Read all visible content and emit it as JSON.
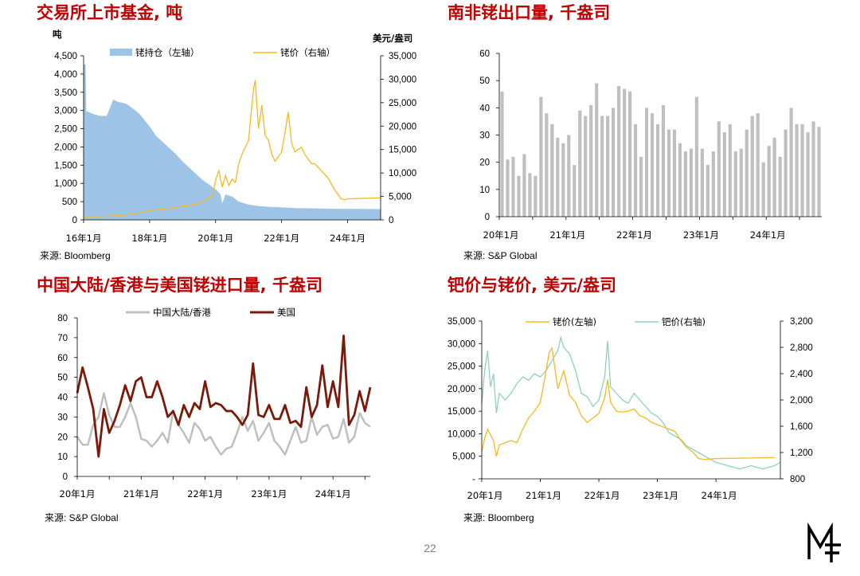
{
  "page_number": "22",
  "logo_letters": "MF",
  "colors": {
    "title_red": "#c00000",
    "holdings_fill": "#9dc3e6",
    "palladium_orange": "#f5b921",
    "export_bar": "#bfbfbf",
    "china_gray": "#bfbfbf",
    "us_brown": "#7b1a0a",
    "platinum_teal": "#8fd1c1"
  },
  "chart_data": [
    {
      "type": "area",
      "title": "交易所上市基金, 吨",
      "source": "来源: Bloomberg",
      "left_unit": "吨",
      "right_unit": "美元/盎司",
      "y_left_range": [
        0,
        4500
      ],
      "y_left_ticks": [
        "0",
        "500",
        "1,000",
        "1,500",
        "2,000",
        "2,500",
        "3,000",
        "3,500",
        "4,000",
        "4,500"
      ],
      "y_right_range": [
        0,
        35000
      ],
      "y_right_ticks": [
        "0",
        "5,000",
        "10,000",
        "15,000",
        "20,000",
        "25,000",
        "30,000",
        "35,000"
      ],
      "x_range": [
        2016.0,
        2025.0
      ],
      "x_ticks": [
        {
          "x": 2016.0,
          "label": "16年1月"
        },
        {
          "x": 2018.0,
          "label": "18年1月"
        },
        {
          "x": 2020.0,
          "label": "20年1月"
        },
        {
          "x": 2022.0,
          "label": "22年1月"
        },
        {
          "x": 2024.0,
          "label": "24年1月"
        }
      ],
      "series": [
        {
          "name": "铑持仓（左轴）",
          "axis": "left",
          "style": "area",
          "x": [
            2016.0,
            2016.06,
            2016.08,
            2016.1,
            2016.3,
            2016.5,
            2016.7,
            2016.9,
            2017.0,
            2017.3,
            2017.5,
            2017.7,
            2018.0,
            2018.2,
            2018.5,
            2018.8,
            2019.0,
            2019.3,
            2019.6,
            2019.9,
            2020.0,
            2020.15,
            2020.2,
            2020.3,
            2020.5,
            2020.7,
            2021.0,
            2021.3,
            2021.6,
            2022.0,
            2022.5,
            2023.0,
            2023.5,
            2024.0,
            2024.5,
            2025.0
          ],
          "values": [
            4250,
            4270,
            2950,
            2980,
            2900,
            2850,
            2850,
            3300,
            3250,
            3180,
            3050,
            2900,
            2560,
            2300,
            2050,
            1800,
            1600,
            1350,
            1100,
            900,
            840,
            700,
            450,
            700,
            640,
            500,
            420,
            380,
            360,
            340,
            320,
            315,
            305,
            300,
            300,
            295
          ]
        },
        {
          "name": "铑价（右轴）",
          "axis": "right",
          "style": "line",
          "x": [
            2016.0,
            2016.5,
            2017.0,
            2017.5,
            2018.0,
            2018.5,
            2019.0,
            2019.5,
            2019.9,
            2020.0,
            2020.1,
            2020.2,
            2020.3,
            2020.4,
            2020.5,
            2020.6,
            2020.7,
            2020.8,
            2020.9,
            2021.0,
            2021.1,
            2021.15,
            2021.2,
            2021.3,
            2021.4,
            2021.5,
            2021.6,
            2021.7,
            2021.8,
            2021.9,
            2022.0,
            2022.1,
            2022.2,
            2022.3,
            2022.4,
            2022.5,
            2022.6,
            2022.7,
            2022.8,
            2022.9,
            2023.0,
            2023.2,
            2023.4,
            2023.6,
            2023.8,
            2023.9,
            2024.0,
            2024.5,
            2025.0
          ],
          "values": [
            650,
            700,
            900,
            1200,
            2000,
            2400,
            2900,
            3500,
            5000,
            8500,
            10500,
            7000,
            9500,
            7300,
            8700,
            8000,
            12000,
            14000,
            15500,
            17000,
            24500,
            28000,
            29800,
            19500,
            24500,
            18000,
            17000,
            14000,
            12500,
            13500,
            14500,
            18500,
            23000,
            16500,
            14500,
            15000,
            15500,
            14000,
            13000,
            12000,
            12000,
            10500,
            9000,
            6500,
            4500,
            4300,
            4500,
            4600,
            4700
          ]
        }
      ]
    },
    {
      "type": "bar",
      "title": "南非铑出口量, 千盎司",
      "source": "来源: S&P Global",
      "y_range": [
        0,
        60
      ],
      "y_ticks": [
        "0",
        "10",
        "20",
        "30",
        "40",
        "50",
        "60"
      ],
      "x_ticks": [
        {
          "index": 0,
          "label": "20年1月"
        },
        {
          "index": 12,
          "label": "21年1月"
        },
        {
          "index": 24,
          "label": "22年1月"
        },
        {
          "index": 36,
          "label": "23年1月"
        },
        {
          "index": 48,
          "label": "24年1月"
        }
      ],
      "series": [
        {
          "name": "铑出口量",
          "values": [
            46,
            21,
            22,
            15,
            23,
            16,
            15,
            44,
            38,
            34,
            29,
            27,
            30,
            19,
            39,
            37,
            41,
            49,
            37,
            37,
            40,
            48,
            47,
            46,
            34,
            22,
            40,
            38,
            34,
            41,
            32,
            32,
            27,
            24,
            25,
            44,
            25,
            19,
            24,
            35,
            31,
            34,
            24,
            25,
            32,
            37,
            38,
            20,
            26,
            29,
            22,
            32,
            40,
            34,
            34,
            31,
            35,
            33
          ]
        }
      ]
    },
    {
      "type": "line",
      "title": "中国大陆/香港与美国铑进口量, 千盎司",
      "source": "来源: S&P Global",
      "y_range": [
        0,
        80
      ],
      "y_ticks": [
        "0",
        "10",
        "20",
        "30",
        "40",
        "50",
        "60",
        "70",
        "80"
      ],
      "x_ticks": [
        {
          "index": 0,
          "label": "20年1月"
        },
        {
          "index": 12,
          "label": "21年1月"
        },
        {
          "index": 24,
          "label": "22年1月"
        },
        {
          "index": 36,
          "label": "23年1月"
        },
        {
          "index": 48,
          "label": "24年1月"
        }
      ],
      "series": [
        {
          "name": "中国大陆/香港",
          "values": [
            20,
            16,
            16,
            26,
            30,
            42,
            31,
            25,
            25,
            30,
            37,
            30,
            19,
            18,
            15,
            18,
            22,
            17,
            33,
            26,
            22,
            17,
            27,
            24,
            18,
            20,
            15,
            11,
            14,
            15,
            22,
            30,
            23,
            28,
            18,
            22,
            27,
            18,
            15,
            11,
            18,
            25,
            17,
            18,
            30,
            21,
            25,
            26,
            19,
            20,
            29,
            17,
            20,
            32,
            27,
            25
          ]
        },
        {
          "name": "美国",
          "values": [
            42,
            55,
            45,
            34,
            10,
            34,
            22,
            28,
            36,
            46,
            38,
            48,
            50,
            40,
            40,
            48,
            40,
            30,
            33,
            26,
            36,
            30,
            37,
            34,
            48,
            35,
            37,
            36,
            33,
            33,
            30,
            26,
            31,
            57,
            31,
            30,
            36,
            29,
            29,
            36,
            27,
            28,
            25,
            45,
            30,
            36,
            56,
            35,
            48,
            35,
            71,
            26,
            31,
            43,
            33,
            45
          ]
        }
      ]
    },
    {
      "type": "line",
      "title": "钯价与铑价, 美元/盎司",
      "source": "来源: Bloomberg",
      "y_left_range": [
        0,
        35000
      ],
      "y_left_ticks": [
        "-",
        "5,000",
        "10,000",
        "15,000",
        "20,000",
        "25,000",
        "30,000",
        "35,000"
      ],
      "y_right_range": [
        800,
        3200
      ],
      "y_right_ticks": [
        "800",
        "1,200",
        "1,600",
        "2,000",
        "2,400",
        "2,800",
        "3,200"
      ],
      "x_range": [
        2020.0,
        2025.1
      ],
      "x_ticks": [
        {
          "x": 2020.0,
          "label": "20年1月"
        },
        {
          "x": 2021.0,
          "label": "21年1月"
        },
        {
          "x": 2022.0,
          "label": "22年1月"
        },
        {
          "x": 2023.0,
          "label": "23年1月"
        },
        {
          "x": 2024.0,
          "label": "24年1月"
        }
      ],
      "series": [
        {
          "name": "铑价(左轴)",
          "axis": "left",
          "x": [
            2020.0,
            2020.05,
            2020.1,
            2020.2,
            2020.25,
            2020.3,
            2020.4,
            2020.5,
            2020.6,
            2020.7,
            2020.8,
            2020.9,
            2021.0,
            2021.1,
            2021.15,
            2021.2,
            2021.3,
            2021.4,
            2021.5,
            2021.6,
            2021.7,
            2021.8,
            2021.9,
            2022.0,
            2022.1,
            2022.15,
            2022.2,
            2022.3,
            2022.4,
            2022.5,
            2022.6,
            2022.7,
            2022.8,
            2022.9,
            2023.0,
            2023.1,
            2023.2,
            2023.3,
            2023.4,
            2023.5,
            2023.6,
            2023.7,
            2023.8,
            2024.0,
            2024.5,
            2025.0
          ],
          "values": [
            6000,
            9000,
            11000,
            8500,
            5000,
            7500,
            8000,
            8500,
            8000,
            11000,
            13500,
            15000,
            17000,
            24000,
            28000,
            29000,
            20000,
            24000,
            18500,
            17000,
            14000,
            12500,
            13500,
            14500,
            18000,
            22000,
            17000,
            15000,
            14800,
            15000,
            15500,
            14000,
            13500,
            12500,
            12000,
            11500,
            11000,
            10500,
            8500,
            7000,
            6000,
            4500,
            4300,
            4500,
            4600,
            4700
          ]
        },
        {
          "name": "钯价(右轴)",
          "axis": "right",
          "x": [
            2020.0,
            2020.05,
            2020.1,
            2020.15,
            2020.2,
            2020.25,
            2020.3,
            2020.4,
            2020.5,
            2020.6,
            2020.7,
            2020.8,
            2020.9,
            2021.0,
            2021.1,
            2021.2,
            2021.3,
            2021.35,
            2021.4,
            2021.5,
            2021.6,
            2021.7,
            2021.8,
            2021.9,
            2022.0,
            2022.1,
            2022.15,
            2022.2,
            2022.3,
            2022.4,
            2022.5,
            2022.6,
            2022.7,
            2022.8,
            2022.9,
            2023.0,
            2023.1,
            2023.2,
            2023.3,
            2023.4,
            2023.5,
            2023.6,
            2023.7,
            2023.8,
            2023.9,
            2024.0,
            2024.2,
            2024.4,
            2024.6,
            2024.8,
            2025.0,
            2025.1
          ],
          "values": [
            1950,
            2450,
            2750,
            2200,
            2400,
            1800,
            2100,
            2000,
            2100,
            2250,
            2350,
            2300,
            2400,
            2350,
            2450,
            2600,
            2750,
            2950,
            2800,
            2700,
            2450,
            2100,
            2050,
            1900,
            2000,
            2350,
            2900,
            2200,
            2100,
            2000,
            1950,
            2100,
            2000,
            1900,
            1800,
            1750,
            1650,
            1500,
            1450,
            1400,
            1300,
            1250,
            1200,
            1150,
            1100,
            1050,
            1000,
            950,
            1000,
            950,
            1000,
            1050
          ]
        }
      ]
    }
  ]
}
